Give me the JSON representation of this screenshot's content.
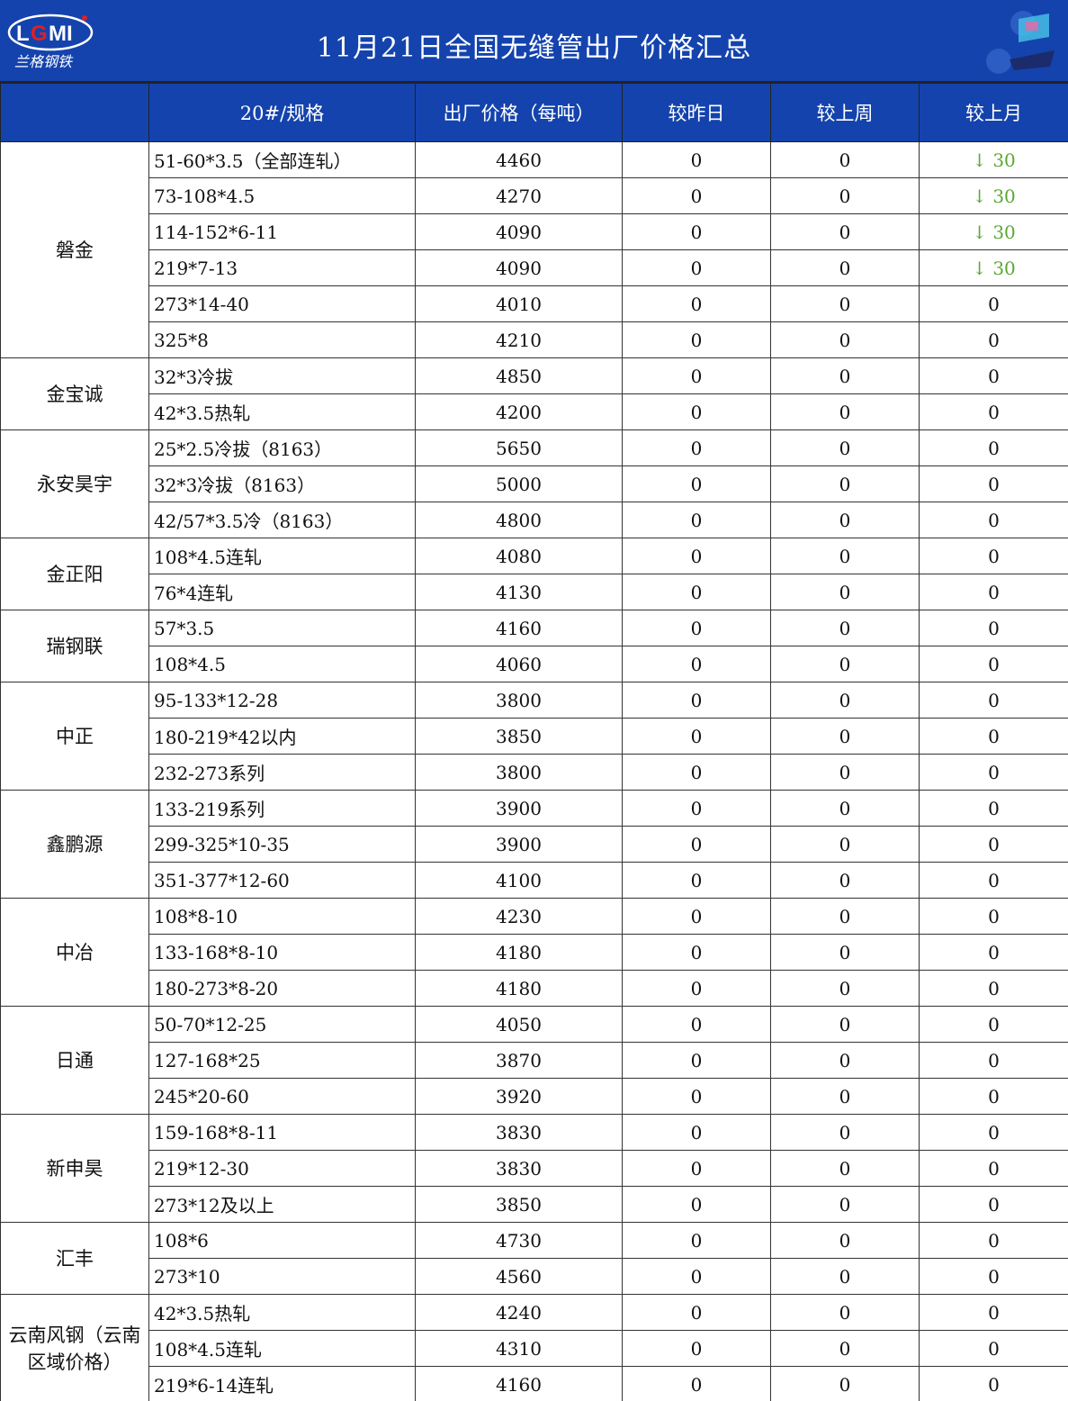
{
  "header": {
    "title": "11月21日全国无缝管出厂价格汇总",
    "logo_text": "LGMI",
    "logo_subtitle": "兰格钢铁",
    "colors": {
      "banner": "#1443ad",
      "down": "#5aa832"
    }
  },
  "columns": [
    "",
    "20#/规格",
    "出厂价格（每吨）",
    "较昨日",
    "较上周",
    "较上月"
  ],
  "groups": [
    {
      "name": "磐金",
      "rows": [
        {
          "spec": "51-60*3.5（全部连轧）",
          "price": "4460",
          "day": "0",
          "week": "0",
          "month": "30",
          "month_trend": "down"
        },
        {
          "spec": "73-108*4.5",
          "price": "4270",
          "day": "0",
          "week": "0",
          "month": "30",
          "month_trend": "down"
        },
        {
          "spec": "114-152*6-11",
          "price": "4090",
          "day": "0",
          "week": "0",
          "month": "30",
          "month_trend": "down"
        },
        {
          "spec": "219*7-13",
          "price": "4090",
          "day": "0",
          "week": "0",
          "month": "30",
          "month_trend": "down"
        },
        {
          "spec": "273*14-40",
          "price": "4010",
          "day": "0",
          "week": "0",
          "month": "0"
        },
        {
          "spec": "325*8",
          "price": "4210",
          "day": "0",
          "week": "0",
          "month": "0"
        }
      ]
    },
    {
      "name": "金宝诚",
      "rows": [
        {
          "spec": "32*3冷拔",
          "price": "4850",
          "day": "0",
          "week": "0",
          "month": "0"
        },
        {
          "spec": "42*3.5热轧",
          "price": "4200",
          "day": "0",
          "week": "0",
          "month": "0"
        }
      ]
    },
    {
      "name": "永安昊宇",
      "rows": [
        {
          "spec": "25*2.5冷拔（8163）",
          "price": "5650",
          "day": "0",
          "week": "0",
          "month": "0"
        },
        {
          "spec": "32*3冷拔（8163）",
          "price": "5000",
          "day": "0",
          "week": "0",
          "month": "0"
        },
        {
          "spec": "42/57*3.5冷（8163）",
          "price": "4800",
          "day": "0",
          "week": "0",
          "month": "0"
        }
      ]
    },
    {
      "name": "金正阳",
      "rows": [
        {
          "spec": "108*4.5连轧",
          "price": "4080",
          "day": "0",
          "week": "0",
          "month": "0"
        },
        {
          "spec": "76*4连轧",
          "price": "4130",
          "day": "0",
          "week": "0",
          "month": "0"
        }
      ]
    },
    {
      "name": "瑞钢联",
      "rows": [
        {
          "spec": "57*3.5",
          "price": "4160",
          "day": "0",
          "week": "0",
          "month": "0"
        },
        {
          "spec": "108*4.5",
          "price": "4060",
          "day": "0",
          "week": "0",
          "month": "0"
        }
      ]
    },
    {
      "name": "中正",
      "rows": [
        {
          "spec": "95-133*12-28",
          "price": "3800",
          "day": "0",
          "week": "0",
          "month": "0"
        },
        {
          "spec": "180-219*42以内",
          "price": "3850",
          "day": "0",
          "week": "0",
          "month": "0"
        },
        {
          "spec": "232-273系列",
          "price": "3800",
          "day": "0",
          "week": "0",
          "month": "0"
        }
      ]
    },
    {
      "name": "鑫鹏源",
      "rows": [
        {
          "spec": "133-219系列",
          "price": "3900",
          "day": "0",
          "week": "0",
          "month": "0"
        },
        {
          "spec": "299-325*10-35",
          "price": "3900",
          "day": "0",
          "week": "0",
          "month": "0"
        },
        {
          "spec": "351-377*12-60",
          "price": "4100",
          "day": "0",
          "week": "0",
          "month": "0"
        }
      ]
    },
    {
      "name": "中冶",
      "rows": [
        {
          "spec": "108*8-10",
          "price": "4230",
          "day": "0",
          "week": "0",
          "month": "0"
        },
        {
          "spec": "133-168*8-10",
          "price": "4180",
          "day": "0",
          "week": "0",
          "month": "0"
        },
        {
          "spec": "180-273*8-20",
          "price": "4180",
          "day": "0",
          "week": "0",
          "month": "0"
        }
      ]
    },
    {
      "name": "日通",
      "rows": [
        {
          "spec": "50-70*12-25",
          "price": "4050",
          "day": "0",
          "week": "0",
          "month": "0"
        },
        {
          "spec": "127-168*25",
          "price": "3870",
          "day": "0",
          "week": "0",
          "month": "0"
        },
        {
          "spec": "245*20-60",
          "price": "3920",
          "day": "0",
          "week": "0",
          "month": "0"
        }
      ]
    },
    {
      "name": "新申昊",
      "rows": [
        {
          "spec": "159-168*8-11",
          "price": "3830",
          "day": "0",
          "week": "0",
          "month": "0"
        },
        {
          "spec": "219*12-30",
          "price": "3830",
          "day": "0",
          "week": "0",
          "month": "0"
        },
        {
          "spec": "273*12及以上",
          "price": "3850",
          "day": "0",
          "week": "0",
          "month": "0"
        }
      ]
    },
    {
      "name": "汇丰",
      "rows": [
        {
          "spec": "108*6",
          "price": "4730",
          "day": "0",
          "week": "0",
          "month": "0"
        },
        {
          "spec": "273*10",
          "price": "4560",
          "day": "0",
          "week": "0",
          "month": "0"
        }
      ]
    },
    {
      "name": "云南风钢（云南区域价格）",
      "rows": [
        {
          "spec": "42*3.5热轧",
          "price": "4240",
          "day": "0",
          "week": "0",
          "month": "0"
        },
        {
          "spec": "108*4.5连轧",
          "price": "4310",
          "day": "0",
          "week": "0",
          "month": "0"
        },
        {
          "spec": "219*6-14连轧",
          "price": "4160",
          "day": "0",
          "week": "0",
          "month": "0"
        }
      ]
    }
  ]
}
